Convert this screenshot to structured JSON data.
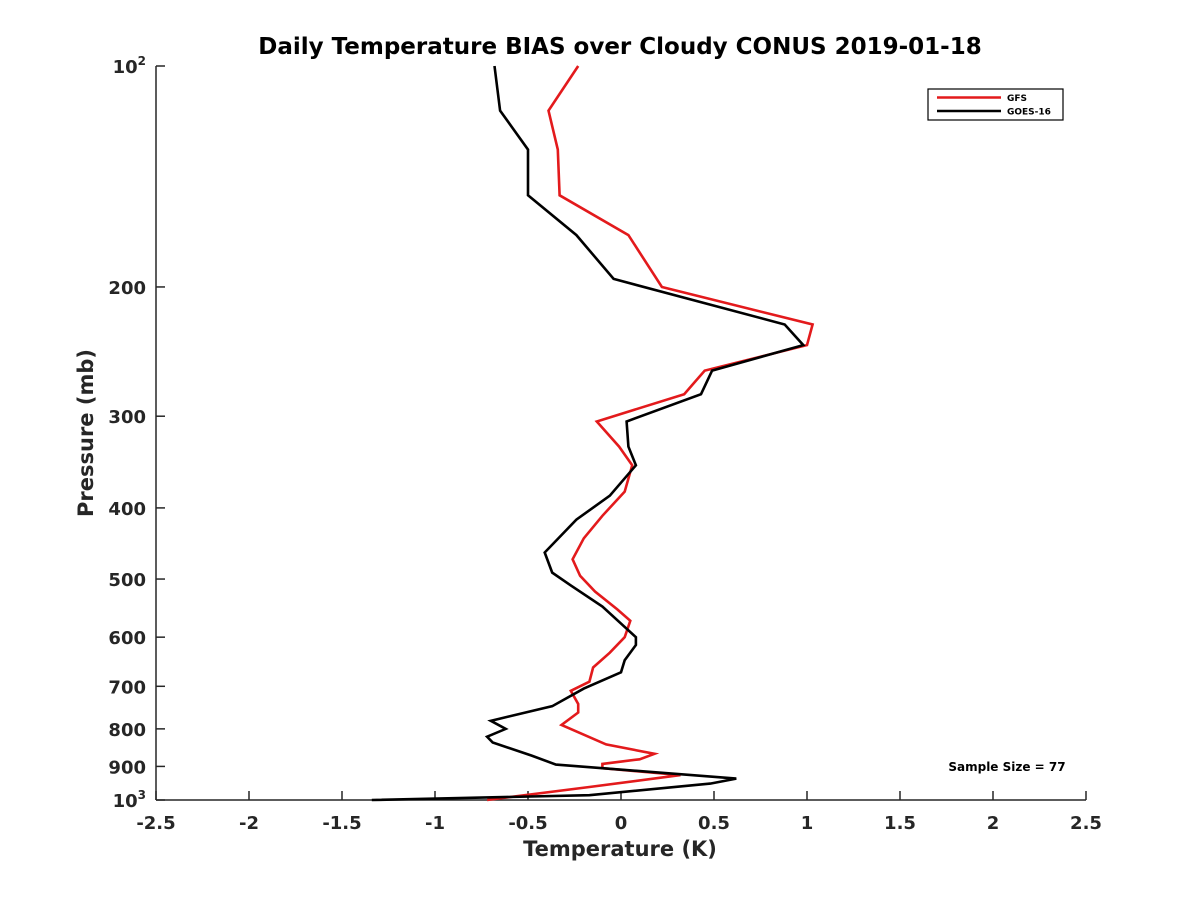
{
  "chart_data": {
    "type": "line",
    "title": "Daily Temperature BIAS over Cloudy CONUS 2019-01-18",
    "xlabel": "Temperature (K)",
    "ylabel": "Pressure (mb)",
    "xlim": [
      -2.5,
      2.5
    ],
    "ylim": [
      100,
      1000
    ],
    "y_scale": "log",
    "y_reversed": true,
    "grid": false,
    "legend_position": "top-right",
    "x_ticks": [
      "-2.5",
      "-2",
      "-1.5",
      "-1",
      "-0.5",
      "0",
      "0.5",
      "1",
      "1.5",
      "2",
      "2.5"
    ],
    "y_ticks": [
      {
        "value": 100,
        "base": "10",
        "exp": "2"
      },
      {
        "value": 200,
        "label": "200"
      },
      {
        "value": 300,
        "label": "300"
      },
      {
        "value": 400,
        "label": "400"
      },
      {
        "value": 500,
        "label": "500"
      },
      {
        "value": 600,
        "label": "600"
      },
      {
        "value": 700,
        "label": "700"
      },
      {
        "value": 800,
        "label": "800"
      },
      {
        "value": 900,
        "label": "900"
      },
      {
        "value": 1000,
        "base": "10",
        "exp": "3"
      }
    ],
    "annotation": "Sample Size = 77",
    "series": [
      {
        "name": "GFS",
        "color": "#e31a1c",
        "points": [
          [
            -0.23,
            100
          ],
          [
            -0.39,
            115
          ],
          [
            -0.34,
            130
          ],
          [
            -0.33,
            150
          ],
          [
            0.04,
            170
          ],
          [
            0.22,
            200
          ],
          [
            1.03,
            225
          ],
          [
            1.0,
            240
          ],
          [
            0.45,
            260
          ],
          [
            0.34,
            280
          ],
          [
            -0.13,
            305
          ],
          [
            -0.01,
            330
          ],
          [
            0.06,
            350
          ],
          [
            0.02,
            380
          ],
          [
            -0.1,
            410
          ],
          [
            -0.2,
            440
          ],
          [
            -0.26,
            470
          ],
          [
            -0.22,
            495
          ],
          [
            -0.14,
            520
          ],
          [
            -0.02,
            550
          ],
          [
            0.05,
            570
          ],
          [
            0.02,
            600
          ],
          [
            -0.06,
            630
          ],
          [
            -0.15,
            660
          ],
          [
            -0.17,
            690
          ],
          [
            -0.27,
            710
          ],
          [
            -0.23,
            740
          ],
          [
            -0.23,
            760
          ],
          [
            -0.32,
            790
          ],
          [
            -0.08,
            840
          ],
          [
            0.18,
            865
          ],
          [
            0.1,
            880
          ],
          [
            -0.1,
            893
          ],
          [
            -0.1,
            905
          ],
          [
            0.32,
            925
          ],
          [
            -0.17,
            960
          ],
          [
            -0.72,
            1000
          ]
        ]
      },
      {
        "name": "GOES-16",
        "color": "#000000",
        "points": [
          [
            -0.68,
            100
          ],
          [
            -0.65,
            115
          ],
          [
            -0.5,
            130
          ],
          [
            -0.5,
            150
          ],
          [
            -0.24,
            170
          ],
          [
            -0.04,
            195
          ],
          [
            0.88,
            225
          ],
          [
            0.98,
            240
          ],
          [
            0.49,
            260
          ],
          [
            0.43,
            280
          ],
          [
            0.03,
            305
          ],
          [
            0.04,
            330
          ],
          [
            0.08,
            350
          ],
          [
            -0.06,
            385
          ],
          [
            -0.24,
            415
          ],
          [
            -0.41,
            460
          ],
          [
            -0.37,
            490
          ],
          [
            -0.27,
            510
          ],
          [
            -0.1,
            545
          ],
          [
            0.0,
            575
          ],
          [
            0.08,
            600
          ],
          [
            0.08,
            615
          ],
          [
            0.02,
            645
          ],
          [
            0.0,
            670
          ],
          [
            -0.2,
            705
          ],
          [
            -0.37,
            745
          ],
          [
            -0.7,
            780
          ],
          [
            -0.62,
            800
          ],
          [
            -0.72,
            820
          ],
          [
            -0.69,
            835
          ],
          [
            -0.48,
            870
          ],
          [
            -0.35,
            895
          ],
          [
            0.62,
            935
          ],
          [
            0.48,
            950
          ],
          [
            -0.17,
            985
          ],
          [
            -1.34,
            1000
          ]
        ]
      }
    ]
  }
}
